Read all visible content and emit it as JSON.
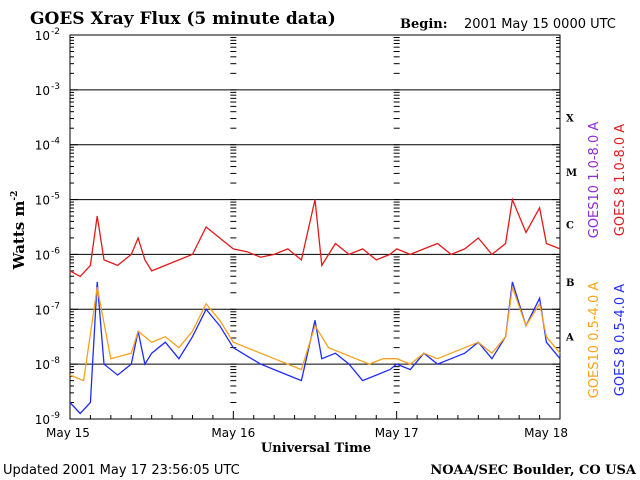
{
  "header": {
    "title": "GOES Xray Flux (5 minute data)",
    "begin_label": "Begin:",
    "begin_value": "2001 May 15 0000 UTC"
  },
  "footer": {
    "updated": "Updated 2001 May 17 23:56:05 UTC",
    "credit": "NOAA/SEC Boulder, CO USA"
  },
  "chart_data": {
    "type": "line",
    "title": "GOES Xray Flux (5 minute data)",
    "xlabel": "Universal Time",
    "ylabel": "Watts m",
    "ylabel_sup": "-2",
    "y_scale": "log",
    "ylim": [
      1e-09,
      0.01
    ],
    "x_unit": "hours since 2001 May 15 0000 UTC",
    "xlim": [
      0,
      72
    ],
    "x_ticks": [
      {
        "x": 0,
        "label": "May 15"
      },
      {
        "x": 24,
        "label": "May 16"
      },
      {
        "x": 48,
        "label": "May 17"
      },
      {
        "x": 72,
        "label": "May 18"
      }
    ],
    "y_ticks": [
      {
        "exp": -2,
        "label": "10",
        "sup": "-2"
      },
      {
        "exp": -3,
        "label": "10",
        "sup": "-3"
      },
      {
        "exp": -4,
        "label": "10",
        "sup": "-4"
      },
      {
        "exp": -5,
        "label": "10",
        "sup": "-5"
      },
      {
        "exp": -6,
        "label": "10",
        "sup": "-6"
      },
      {
        "exp": -7,
        "label": "10",
        "sup": "-7"
      },
      {
        "exp": -8,
        "label": "10",
        "sup": "-8"
      },
      {
        "exp": -9,
        "label": "10",
        "sup": "-9"
      }
    ],
    "flare_classes": [
      {
        "label": "X",
        "exp": -3.5
      },
      {
        "label": "M",
        "exp": -4.5
      },
      {
        "label": "C",
        "exp": -5.45
      },
      {
        "label": "B",
        "exp": -6.5
      },
      {
        "label": "A",
        "exp": -7.5
      }
    ],
    "grid": true,
    "legend_position": "right (vertical)",
    "series": [
      {
        "name": "GOES 8 1.0-8.0 A",
        "color": "#e31a1c",
        "points": [
          [
            0,
            -6.3
          ],
          [
            1.5,
            -6.4
          ],
          [
            3,
            -6.2
          ],
          [
            4,
            -5.3
          ],
          [
            5,
            -6.1
          ],
          [
            7,
            -6.2
          ],
          [
            9,
            -6.0
          ],
          [
            10,
            -5.7
          ],
          [
            11,
            -6.1
          ],
          [
            12,
            -6.3
          ],
          [
            14,
            -6.2
          ],
          [
            16,
            -6.1
          ],
          [
            18,
            -6.0
          ],
          [
            20,
            -5.5
          ],
          [
            22,
            -5.7
          ],
          [
            24,
            -5.9
          ],
          [
            26,
            -5.95
          ],
          [
            28,
            -6.05
          ],
          [
            30,
            -6.0
          ],
          [
            32,
            -5.9
          ],
          [
            34,
            -6.1
          ],
          [
            36,
            -5.0
          ],
          [
            37,
            -6.2
          ],
          [
            39,
            -5.8
          ],
          [
            41,
            -6.0
          ],
          [
            43,
            -5.9
          ],
          [
            45,
            -6.1
          ],
          [
            47,
            -6.0
          ],
          [
            48,
            -5.9
          ],
          [
            50,
            -6.0
          ],
          [
            52,
            -5.9
          ],
          [
            54,
            -5.8
          ],
          [
            56,
            -6.0
          ],
          [
            58,
            -5.9
          ],
          [
            60,
            -5.7
          ],
          [
            62,
            -6.0
          ],
          [
            64,
            -5.8
          ],
          [
            65,
            -5.0
          ],
          [
            67,
            -5.6
          ],
          [
            69,
            -5.15
          ],
          [
            70,
            -5.8
          ],
          [
            72,
            -5.9
          ]
        ]
      },
      {
        "name": "GOES 8 0.5-4.0 A",
        "color": "#1f2bff",
        "points": [
          [
            0,
            -8.7
          ],
          [
            1.5,
            -8.9
          ],
          [
            3,
            -8.7
          ],
          [
            4,
            -6.5
          ],
          [
            5,
            -8.0
          ],
          [
            7,
            -8.2
          ],
          [
            9,
            -8.0
          ],
          [
            10,
            -7.4
          ],
          [
            11,
            -8.0
          ],
          [
            12,
            -7.8
          ],
          [
            14,
            -7.6
          ],
          [
            16,
            -7.9
          ],
          [
            18,
            -7.5
          ],
          [
            20,
            -7.0
          ],
          [
            22,
            -7.3
          ],
          [
            24,
            -7.7
          ],
          [
            26,
            -7.85
          ],
          [
            28,
            -8.0
          ],
          [
            30,
            -8.1
          ],
          [
            32,
            -8.2
          ],
          [
            34,
            -8.3
          ],
          [
            36,
            -7.2
          ],
          [
            37,
            -7.9
          ],
          [
            39,
            -7.8
          ],
          [
            41,
            -8.0
          ],
          [
            43,
            -8.3
          ],
          [
            45,
            -8.2
          ],
          [
            47,
            -8.1
          ],
          [
            48,
            -8.0
          ],
          [
            50,
            -8.1
          ],
          [
            52,
            -7.8
          ],
          [
            54,
            -8.0
          ],
          [
            56,
            -7.9
          ],
          [
            58,
            -7.8
          ],
          [
            60,
            -7.6
          ],
          [
            62,
            -7.9
          ],
          [
            64,
            -7.5
          ],
          [
            65,
            -6.5
          ],
          [
            67,
            -7.3
          ],
          [
            69,
            -6.8
          ],
          [
            70,
            -7.6
          ],
          [
            72,
            -7.9
          ]
        ]
      },
      {
        "name": "GOES10 1.0-8.0 A",
        "color": "#8e2bd1",
        "points": []
      },
      {
        "name": "GOES10 0.5-4.0 A",
        "color": "#f7a21b",
        "points": [
          [
            0,
            -8.2
          ],
          [
            2,
            -8.3
          ],
          [
            4,
            -6.6
          ],
          [
            6,
            -7.9
          ],
          [
            9,
            -7.8
          ],
          [
            10,
            -7.4
          ],
          [
            12,
            -7.6
          ],
          [
            14,
            -7.5
          ],
          [
            16,
            -7.7
          ],
          [
            18,
            -7.4
          ],
          [
            20,
            -6.9
          ],
          [
            22,
            -7.2
          ],
          [
            24,
            -7.6
          ],
          [
            26,
            -7.7
          ],
          [
            28,
            -7.8
          ],
          [
            30,
            -7.9
          ],
          [
            32,
            -8.0
          ],
          [
            34,
            -8.1
          ],
          [
            36,
            -7.3
          ],
          [
            38,
            -7.7
          ],
          [
            40,
            -7.8
          ],
          [
            42,
            -7.9
          ],
          [
            44,
            -8.0
          ],
          [
            46,
            -7.9
          ],
          [
            48,
            -7.9
          ],
          [
            50,
            -8.0
          ],
          [
            52,
            -7.8
          ],
          [
            54,
            -7.9
          ],
          [
            56,
            -7.8
          ],
          [
            58,
            -7.7
          ],
          [
            60,
            -7.6
          ],
          [
            62,
            -7.8
          ],
          [
            64,
            -7.5
          ],
          [
            65,
            -6.6
          ],
          [
            67,
            -7.3
          ],
          [
            69,
            -6.9
          ],
          [
            70,
            -7.5
          ],
          [
            72,
            -7.8
          ]
        ]
      }
    ]
  }
}
